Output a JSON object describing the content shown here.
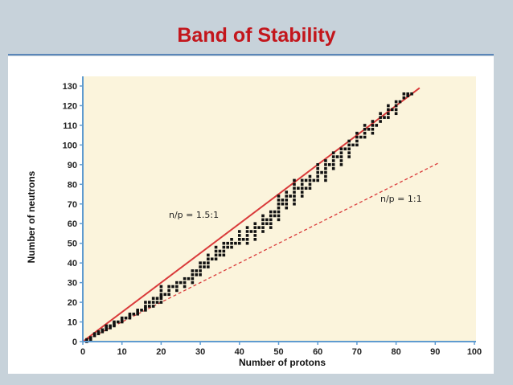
{
  "slide": {
    "title": "Band of Stability"
  },
  "chart_data": {
    "type": "scatter",
    "title": "",
    "xlabel": "Number of protons",
    "ylabel": "Number of neutrons",
    "xlim": [
      0,
      100
    ],
    "ylim": [
      0,
      130
    ],
    "xticks": [
      "0",
      "10",
      "20",
      "30",
      "40",
      "50",
      "60",
      "70",
      "80",
      "90",
      "100"
    ],
    "yticks": [
      "0",
      "10",
      "20",
      "30",
      "40",
      "50",
      "60",
      "70",
      "80",
      "90",
      "100",
      "110",
      "120",
      "130"
    ],
    "lines": [
      {
        "label": "n/p = 1.5:1",
        "slope": 1.5,
        "x_end": 86,
        "style": "solid",
        "color": "#d93a3a"
      },
      {
        "label": "n/p = 1:1",
        "slope": 1.0,
        "x_end": 91,
        "style": "dashed",
        "color": "#d93a3a"
      }
    ],
    "band": [
      [
        1,
        0
      ],
      [
        1,
        1
      ],
      [
        2,
        1
      ],
      [
        2,
        2
      ],
      [
        3,
        3
      ],
      [
        3,
        4
      ],
      [
        4,
        4
      ],
      [
        4,
        5
      ],
      [
        5,
        5
      ],
      [
        5,
        6
      ],
      [
        6,
        6
      ],
      [
        6,
        7
      ],
      [
        6,
        8
      ],
      [
        7,
        7
      ],
      [
        7,
        8
      ],
      [
        8,
        8
      ],
      [
        8,
        9
      ],
      [
        8,
        10
      ],
      [
        9,
        10
      ],
      [
        10,
        10
      ],
      [
        10,
        11
      ],
      [
        10,
        12
      ],
      [
        11,
        12
      ],
      [
        12,
        12
      ],
      [
        12,
        13
      ],
      [
        12,
        14
      ],
      [
        13,
        14
      ],
      [
        14,
        14
      ],
      [
        14,
        15
      ],
      [
        14,
        16
      ],
      [
        15,
        16
      ],
      [
        16,
        16
      ],
      [
        16,
        17
      ],
      [
        16,
        18
      ],
      [
        16,
        20
      ],
      [
        17,
        18
      ],
      [
        17,
        20
      ],
      [
        18,
        18
      ],
      [
        18,
        20
      ],
      [
        18,
        22
      ],
      [
        19,
        20
      ],
      [
        19,
        22
      ],
      [
        20,
        20
      ],
      [
        20,
        22
      ],
      [
        20,
        23
      ],
      [
        20,
        24
      ],
      [
        20,
        26
      ],
      [
        20,
        28
      ],
      [
        21,
        24
      ],
      [
        22,
        24
      ],
      [
        22,
        26
      ],
      [
        22,
        28
      ],
      [
        23,
        28
      ],
      [
        24,
        26
      ],
      [
        24,
        28
      ],
      [
        24,
        30
      ],
      [
        25,
        30
      ],
      [
        26,
        28
      ],
      [
        26,
        30
      ],
      [
        26,
        32
      ],
      [
        27,
        32
      ],
      [
        28,
        30
      ],
      [
        28,
        32
      ],
      [
        28,
        34
      ],
      [
        28,
        36
      ],
      [
        29,
        34
      ],
      [
        29,
        36
      ],
      [
        30,
        34
      ],
      [
        30,
        36
      ],
      [
        30,
        38
      ],
      [
        30,
        40
      ],
      [
        31,
        38
      ],
      [
        31,
        40
      ],
      [
        32,
        38
      ],
      [
        32,
        40
      ],
      [
        32,
        42
      ],
      [
        32,
        44
      ],
      [
        33,
        42
      ],
      [
        34,
        42
      ],
      [
        34,
        44
      ],
      [
        34,
        46
      ],
      [
        34,
        48
      ],
      [
        35,
        44
      ],
      [
        35,
        46
      ],
      [
        36,
        44
      ],
      [
        36,
        46
      ],
      [
        36,
        48
      ],
      [
        36,
        50
      ],
      [
        37,
        48
      ],
      [
        37,
        50
      ],
      [
        38,
        48
      ],
      [
        38,
        50
      ],
      [
        38,
        52
      ],
      [
        39,
        50
      ],
      [
        40,
        50
      ],
      [
        40,
        52
      ],
      [
        40,
        54
      ],
      [
        40,
        56
      ],
      [
        41,
        52
      ],
      [
        42,
        50
      ],
      [
        42,
        52
      ],
      [
        42,
        54
      ],
      [
        42,
        56
      ],
      [
        42,
        58
      ],
      [
        43,
        56
      ],
      [
        44,
        52
      ],
      [
        44,
        54
      ],
      [
        44,
        56
      ],
      [
        44,
        58
      ],
      [
        44,
        60
      ],
      [
        45,
        58
      ],
      [
        46,
        56
      ],
      [
        46,
        58
      ],
      [
        46,
        60
      ],
      [
        46,
        62
      ],
      [
        46,
        64
      ],
      [
        47,
        60
      ],
      [
        47,
        62
      ],
      [
        48,
        58
      ],
      [
        48,
        60
      ],
      [
        48,
        62
      ],
      [
        48,
        64
      ],
      [
        48,
        66
      ],
      [
        49,
        64
      ],
      [
        49,
        66
      ],
      [
        50,
        62
      ],
      [
        50,
        64
      ],
      [
        50,
        66
      ],
      [
        50,
        68
      ],
      [
        50,
        70
      ],
      [
        50,
        72
      ],
      [
        50,
        74
      ],
      [
        51,
        70
      ],
      [
        51,
        72
      ],
      [
        52,
        68
      ],
      [
        52,
        70
      ],
      [
        52,
        72
      ],
      [
        52,
        74
      ],
      [
        52,
        76
      ],
      [
        53,
        74
      ],
      [
        54,
        70
      ],
      [
        54,
        72
      ],
      [
        54,
        74
      ],
      [
        54,
        76
      ],
      [
        54,
        78
      ],
      [
        54,
        80
      ],
      [
        54,
        82
      ],
      [
        55,
        78
      ],
      [
        56,
        74
      ],
      [
        56,
        76
      ],
      [
        56,
        78
      ],
      [
        56,
        80
      ],
      [
        56,
        82
      ],
      [
        57,
        78
      ],
      [
        57,
        82
      ],
      [
        58,
        78
      ],
      [
        58,
        80
      ],
      [
        58,
        82
      ],
      [
        58,
        84
      ],
      [
        59,
        82
      ],
      [
        60,
        82
      ],
      [
        60,
        84
      ],
      [
        60,
        86
      ],
      [
        60,
        88
      ],
      [
        60,
        90
      ],
      [
        61,
        86
      ],
      [
        62,
        82
      ],
      [
        62,
        84
      ],
      [
        62,
        86
      ],
      [
        62,
        88
      ],
      [
        62,
        90
      ],
      [
        62,
        92
      ],
      [
        63,
        90
      ],
      [
        64,
        88
      ],
      [
        64,
        90
      ],
      [
        64,
        92
      ],
      [
        64,
        94
      ],
      [
        64,
        96
      ],
      [
        65,
        94
      ],
      [
        66,
        90
      ],
      [
        66,
        92
      ],
      [
        66,
        94
      ],
      [
        66,
        96
      ],
      [
        66,
        98
      ],
      [
        67,
        98
      ],
      [
        68,
        94
      ],
      [
        68,
        96
      ],
      [
        68,
        98
      ],
      [
        68,
        100
      ],
      [
        68,
        102
      ],
      [
        69,
        100
      ],
      [
        70,
        100
      ],
      [
        70,
        102
      ],
      [
        70,
        104
      ],
      [
        70,
        106
      ],
      [
        71,
        104
      ],
      [
        72,
        104
      ],
      [
        72,
        106
      ],
      [
        72,
        108
      ],
      [
        72,
        110
      ],
      [
        73,
        108
      ],
      [
        74,
        106
      ],
      [
        74,
        108
      ],
      [
        74,
        110
      ],
      [
        74,
        112
      ],
      [
        75,
        110
      ],
      [
        76,
        112
      ],
      [
        76,
        114
      ],
      [
        76,
        116
      ],
      [
        77,
        114
      ],
      [
        78,
        114
      ],
      [
        78,
        116
      ],
      [
        78,
        118
      ],
      [
        78,
        120
      ],
      [
        79,
        118
      ],
      [
        80,
        116
      ],
      [
        80,
        118
      ],
      [
        80,
        120
      ],
      [
        80,
        122
      ],
      [
        81,
        122
      ],
      [
        82,
        124
      ],
      [
        82,
        126
      ],
      [
        83,
        125
      ],
      [
        83,
        126
      ],
      [
        84,
        126
      ]
    ]
  }
}
